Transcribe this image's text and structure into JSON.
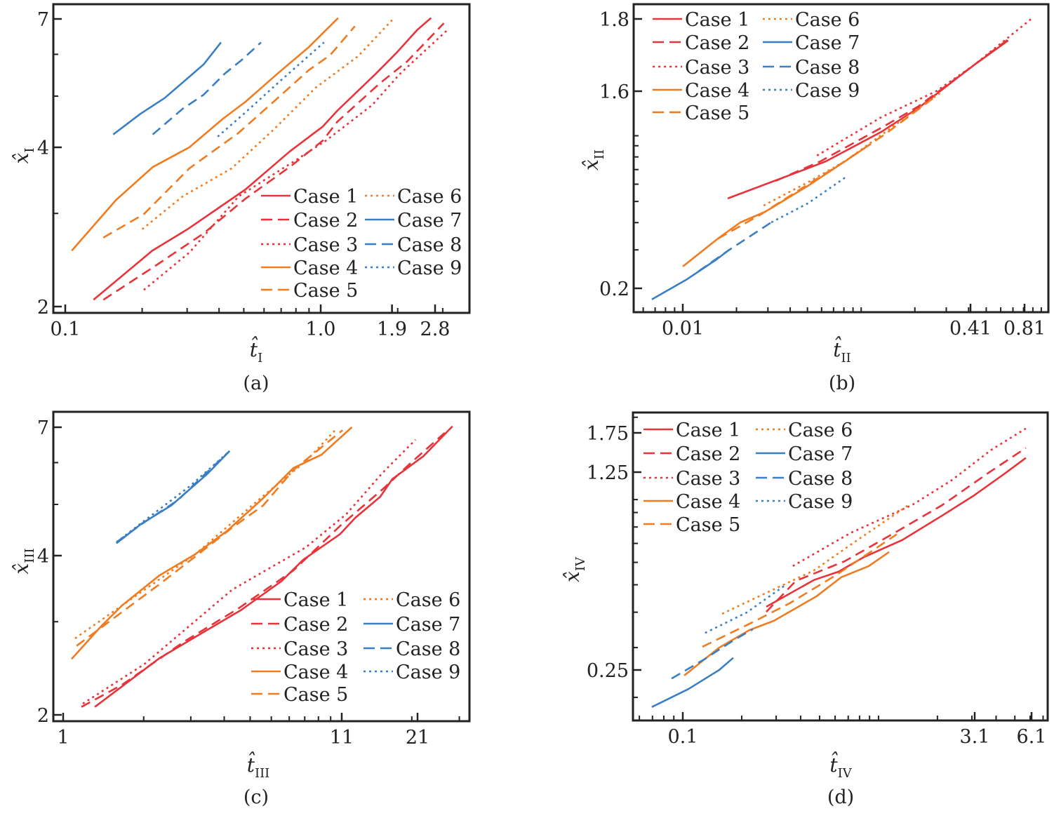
{
  "cases": [
    {
      "name": "Case 1",
      "color": "#e8333a",
      "style": "solid"
    },
    {
      "name": "Case 2",
      "color": "#e8333a",
      "style": "dashed"
    },
    {
      "name": "Case 3",
      "color": "#e8333a",
      "style": "dotted"
    },
    {
      "name": "Case 4",
      "color": "#f07c22",
      "style": "solid"
    },
    {
      "name": "Case 5",
      "color": "#f07c22",
      "style": "dashed"
    },
    {
      "name": "Case 6",
      "color": "#f07c22",
      "style": "dotted"
    },
    {
      "name": "Case 7",
      "color": "#3a7fc4",
      "style": "solid"
    },
    {
      "name": "Case 8",
      "color": "#3a7fc4",
      "style": "dashed"
    },
    {
      "name": "Case 9",
      "color": "#3a7fc4",
      "style": "dotted"
    }
  ],
  "chart_data": [
    {
      "panel": "a",
      "type": "line",
      "caption": "(a)",
      "xlabel": "t̂",
      "xlabel_sub": "I",
      "ylabel": "x̂",
      "ylabel_sub": "I",
      "xscale": "log",
      "yscale": "log",
      "xticks": [
        "0.1",
        "1.0",
        "1.9",
        "2.8"
      ],
      "yticks": [
        "2",
        "4",
        "7"
      ],
      "xlim": [
        0.09,
        3.6
      ],
      "ylim": [
        1.95,
        7.3
      ],
      "legend_position": "bottom-right",
      "series": [
        {
          "case": 0,
          "x": [
            0.129,
            0.219,
            0.301,
            0.508,
            0.757,
            1.02,
            1.16,
            1.64,
            1.98,
            2.39,
            2.7
          ],
          "y": [
            2.06,
            2.55,
            2.8,
            3.33,
            3.93,
            4.38,
            4.69,
            5.51,
            6.04,
            6.68,
            7.03
          ]
        },
        {
          "case": 1,
          "x": [
            0.141,
            0.223,
            0.348,
            0.508,
            0.767,
            1.02,
            1.16,
            1.69,
            2.18,
            3.03
          ],
          "y": [
            2.06,
            2.38,
            2.75,
            3.2,
            3.69,
            4.12,
            4.47,
            5.27,
            5.82,
            6.87
          ]
        },
        {
          "case": 2,
          "x": [
            0.203,
            0.306,
            0.477,
            0.791,
            1.05,
            1.59,
            2.04,
            3.14
          ],
          "y": [
            2.15,
            2.53,
            3.23,
            3.77,
            4.12,
            4.81,
            5.51,
            6.68
          ]
        },
        {
          "case": 3,
          "x": [
            0.106,
            0.158,
            0.22,
            0.306,
            0.412,
            0.508,
            0.676,
            0.898,
            1.17
          ],
          "y": [
            2.55,
            3.18,
            3.67,
            4.0,
            4.52,
            4.88,
            5.51,
            6.19,
            7.03
          ]
        },
        {
          "case": 4,
          "x": [
            0.141,
            0.203,
            0.306,
            0.477,
            0.654,
            0.898,
            1.09,
            1.36
          ],
          "y": [
            2.7,
            2.99,
            3.65,
            4.26,
            4.88,
            5.6,
            5.98,
            6.78
          ]
        },
        {
          "case": 5,
          "x": [
            0.2,
            0.288,
            0.448,
            0.654,
            0.957,
            1.4,
            1.92
          ],
          "y": [
            2.8,
            3.23,
            3.65,
            4.32,
            5.19,
            5.95,
            7.0
          ]
        },
        {
          "case": 6,
          "x": [
            0.154,
            0.197,
            0.245,
            0.348,
            0.407
          ],
          "y": [
            4.23,
            4.63,
            4.96,
            5.74,
            6.32
          ]
        },
        {
          "case": 7,
          "x": [
            0.22,
            0.288,
            0.348,
            0.42,
            0.492,
            0.584
          ],
          "y": [
            4.23,
            4.73,
            5.03,
            5.51,
            5.86,
            6.32
          ]
        },
        {
          "case": 8,
          "x": [
            0.395,
            0.508,
            0.697,
            1.03
          ],
          "y": [
            4.19,
            4.66,
            5.35,
            6.32
          ]
        }
      ]
    },
    {
      "panel": "b",
      "type": "line",
      "caption": "(b)",
      "xlabel": "t̂",
      "xlabel_sub": "II",
      "ylabel": "x̂",
      "ylabel_sub": "II",
      "xscale": "log",
      "yscale": "log",
      "xticks": [
        "0.01",
        "0.41",
        "0.81"
      ],
      "yticks": [
        "0.2",
        "1.6",
        "1.8"
      ],
      "xlim": [
        0.0046,
        1.1
      ],
      "ylim": [
        0.16,
        1.85
      ],
      "legend_position": "top-left",
      "series": [
        {
          "case": 0,
          "x": [
            0.01786,
            0.04467,
            0.06353,
            0.13,
            0.2123,
            0.3105,
            0.4265,
            0.659
          ],
          "y": [
            0.516,
            0.684,
            0.764,
            1.043,
            1.352,
            1.618,
            1.669,
            1.738
          ]
        },
        {
          "case": 1,
          "x": [
            0.0331,
            0.05912,
            0.13,
            0.2084,
            0.4265,
            0.659
          ],
          "y": [
            0.621,
            0.764,
            1.089,
            1.361,
            1.669,
            1.741
          ]
        },
        {
          "case": 2,
          "x": [
            0.05649,
            0.13,
            0.2636,
            0.4265,
            0.881
          ],
          "y": [
            0.811,
            1.218,
            1.6,
            1.669,
            1.8
          ]
        },
        {
          "case": 3,
          "x": [
            0.01,
            0.01574,
            0.02103,
            0.0289,
            0.05023,
            0.08117,
            0.1135
          ],
          "y": [
            0.2517,
            0.338,
            0.401,
            0.448,
            0.589,
            0.764,
            0.919
          ]
        },
        {
          "case": 4,
          "x": [
            0.01574,
            0.02687,
            0.05023,
            0.07762,
            0.135,
            0.2636
          ],
          "y": [
            0.338,
            0.432,
            0.598,
            0.747,
            1.012,
            1.521
          ]
        },
        {
          "case": 5,
          "x": [
            0.02836,
            0.05023,
            0.08117,
            0.1517,
            0.276
          ],
          "y": [
            0.479,
            0.612,
            0.764,
            1.106,
            1.567
          ]
        },
        {
          "case": 6,
          "x": [
            0.00671,
            0.01056,
            0.01545,
            0.01803
          ],
          "y": [
            0.178,
            0.22,
            0.271,
            0.2984
          ]
        },
        {
          "case": 7,
          "x": [
            0.01222,
            0.01803,
            0.03133
          ],
          "y": [
            0.239,
            0.2984,
            0.401
          ]
        },
        {
          "case": 8,
          "x": [
            0.03133,
            0.05023,
            0.08265
          ],
          "y": [
            0.401,
            0.49,
            0.649
          ]
        }
      ]
    },
    {
      "panel": "c",
      "type": "line",
      "caption": "(c)",
      "xlabel": "t̂",
      "xlabel_sub": "III",
      "ylabel": "x̂",
      "ylabel_sub": "III",
      "xscale": "log",
      "yscale": "log",
      "xticks": [
        "1",
        "11",
        "21"
      ],
      "yticks": [
        "2",
        "4",
        "7"
      ],
      "xlim": [
        0.96,
        35
      ],
      "ylim": [
        1.95,
        7.3
      ],
      "legend_position": "bottom-right",
      "series": [
        {
          "case": 0,
          "x": [
            1.313,
            2.29,
            3.13,
            4.64,
            6.55,
            7.9,
            10.82,
            12.36,
            15.27,
            16.92,
            22.07,
            28.3
          ],
          "y": [
            2.07,
            2.56,
            2.81,
            3.16,
            3.58,
            3.93,
            4.39,
            4.72,
            5.17,
            5.58,
            6.17,
            7.03
          ]
        },
        {
          "case": 1,
          "x": [
            1.17,
            1.661,
            2.83,
            4.53,
            7.26,
            10.82,
            15.64,
            19.8,
            26.47
          ],
          "y": [
            2.07,
            2.28,
            2.75,
            3.18,
            3.75,
            4.55,
            5.35,
            5.99,
            6.83
          ]
        },
        {
          "case": 2,
          "x": [
            1.184,
            2.003,
            4.29,
            8.09,
            11.42,
            15.64,
            20.64
          ],
          "y": [
            2.1,
            2.49,
            3.45,
            4.15,
            4.79,
            5.75,
            6.63
          ]
        },
        {
          "case": 3,
          "x": [
            1.075,
            1.386,
            1.661,
            2.29,
            3.13,
            4.09,
            5.6,
            7.26,
            9.24,
            11.99
          ],
          "y": [
            2.55,
            2.94,
            3.22,
            3.67,
            4.03,
            4.45,
            5.14,
            5.86,
            6.21,
            7.0
          ]
        },
        {
          "case": 4,
          "x": [
            1.122,
            1.661,
            2.29,
            3.13,
            4.29,
            5.6,
            7.26,
            11.08
          ],
          "y": [
            2.7,
            3.13,
            3.53,
            3.99,
            4.52,
            4.98,
            5.81,
            6.91
          ]
        },
        {
          "case": 5,
          "x": [
            1.108,
            1.661,
            3.13,
            5.6,
            8.09,
            10.56
          ],
          "y": [
            2.79,
            3.22,
            4.03,
            5.19,
            6.04,
            6.97
          ]
        },
        {
          "case": 6,
          "x": [
            1.582,
            1.955,
            2.54,
            3.47,
            4.19
          ],
          "y": [
            4.22,
            4.59,
            4.98,
            5.72,
            6.31
          ]
        },
        {
          "case": 7,
          "x": [
            1.582,
            2.003,
            2.68,
            3.31,
            4.19
          ],
          "y": [
            4.24,
            4.62,
            5.09,
            5.64,
            6.31
          ]
        },
        {
          "case": 8,
          "x": [
            1.582,
            2.003,
            2.97,
            4.19
          ],
          "y": [
            4.24,
            4.65,
            5.41,
            6.31
          ]
        }
      ]
    },
    {
      "panel": "d",
      "type": "line",
      "caption": "(d)",
      "xlabel": "t̂",
      "xlabel_sub": "IV",
      "ylabel": "x̂",
      "ylabel_sub": "IV",
      "xscale": "log",
      "yscale": "log",
      "xticks": [
        "0.1",
        "3.1",
        "6.1"
      ],
      "yticks": [
        "0.25",
        "1.25",
        "1.75"
      ],
      "xlim": [
        0.055,
        7.0
      ],
      "ylim": [
        0.16,
        2.0
      ],
      "legend_position": "top-left",
      "series": [
        {
          "case": 0,
          "x": [
            0.267,
            0.468,
            0.625,
            0.834,
            1.324,
            2.12,
            3.05,
            4.35,
            5.7
          ],
          "y": [
            0.418,
            0.52,
            0.556,
            0.624,
            0.72,
            0.879,
            1.03,
            1.224,
            1.412
          ]
        },
        {
          "case": 1,
          "x": [
            0.267,
            0.378,
            0.673,
            1.239,
            2.12,
            3.62,
            5.7
          ],
          "y": [
            0.401,
            0.516,
            0.606,
            0.771,
            0.957,
            1.238,
            1.538
          ]
        },
        {
          "case": 2,
          "x": [
            0.365,
            0.719,
            1.486,
            2.36,
            3.78,
            5.7
          ],
          "y": [
            0.582,
            0.762,
            0.957,
            1.169,
            1.513,
            1.816
          ]
        },
        {
          "case": 3,
          "x": [
            0.1017,
            0.1535,
            0.219,
            0.292,
            0.484,
            0.646,
            0.891,
            1.132
          ],
          "y": [
            0.239,
            0.3,
            0.346,
            0.373,
            0.456,
            0.532,
            0.582,
            0.653
          ]
        },
        {
          "case": 4,
          "x": [
            0.126,
            0.228,
            0.351,
            0.604,
            1.239
          ],
          "y": [
            0.302,
            0.369,
            0.43,
            0.54,
            0.754
          ]
        },
        {
          "case": 5,
          "x": [
            0.1588,
            0.283,
            0.468,
            0.719,
            1.426
          ],
          "y": [
            0.395,
            0.477,
            0.562,
            0.692,
            0.957
          ]
        },
        {
          "case": 6,
          "x": [
            0.0695,
            0.1068,
            0.1535,
            0.181
          ],
          "y": [
            0.185,
            0.214,
            0.25,
            0.276
          ]
        },
        {
          "case": 7,
          "x": [
            0.0877,
            0.128,
            0.184,
            0.228
          ],
          "y": [
            0.233,
            0.272,
            0.32,
            0.348
          ]
        },
        {
          "case": 8,
          "x": [
            0.13,
            0.212,
            0.339
          ],
          "y": [
            0.338,
            0.399,
            0.502
          ]
        }
      ]
    }
  ]
}
